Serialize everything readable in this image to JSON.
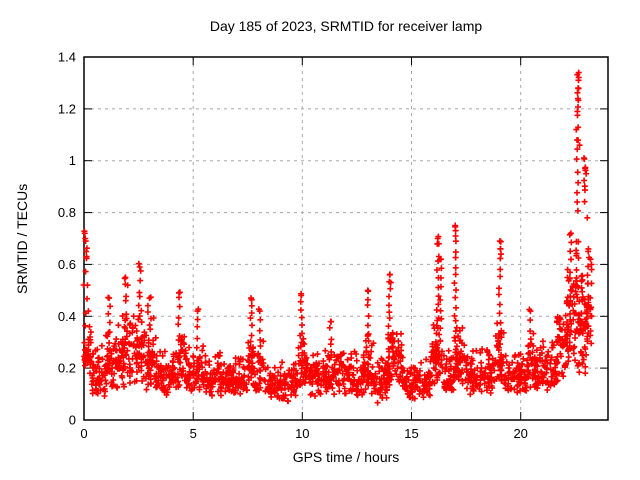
{
  "page": {
    "background": "#ffffff",
    "foreground": "#000000"
  },
  "chart_data": {
    "type": "scatter",
    "title": "Day 185 of 2023, SRMTID for receiver lamp",
    "xlabel": "GPS time / hours",
    "ylabel": "SRMTID / TECUs",
    "xlim": [
      0,
      24
    ],
    "ylim": [
      0,
      1.4
    ],
    "xticks": {
      "values": [
        0,
        5,
        10,
        15,
        20
      ],
      "labels": [
        "0",
        "5",
        "10",
        "15",
        "20"
      ]
    },
    "yticks": {
      "values": [
        0,
        0.2,
        0.4,
        0.6,
        0.8,
        1.0,
        1.2,
        1.4
      ],
      "labels": [
        "0",
        "0.2",
        "0.4",
        "0.6",
        "0.8",
        "1",
        "1.2",
        "1.4"
      ]
    },
    "grid": {
      "show": true,
      "style": "dashed",
      "color": "#a8a8a8"
    },
    "frame_color": "#000000",
    "marker": {
      "shape": "plus",
      "color": "#ff0000",
      "size": 7
    },
    "legend": null,
    "series": [
      {
        "name": "SRMTID",
        "peak_points": [
          [
            0.03,
            0.72
          ],
          [
            0.06,
            0.7
          ],
          [
            0.08,
            0.69
          ],
          [
            0.1,
            0.65
          ],
          [
            0.12,
            0.63
          ],
          [
            0.16,
            0.52
          ],
          [
            0.2,
            0.42
          ],
          [
            0.25,
            0.36
          ],
          [
            1.15,
            0.47
          ],
          [
            1.9,
            0.55
          ],
          [
            2.0,
            0.52
          ],
          [
            2.55,
            0.59
          ],
          [
            3.0,
            0.47
          ],
          [
            4.35,
            0.49
          ],
          [
            5.2,
            0.42
          ],
          [
            7.65,
            0.47
          ],
          [
            8.05,
            0.42
          ],
          [
            9.95,
            0.48
          ],
          [
            11.3,
            0.38
          ],
          [
            13.0,
            0.5
          ],
          [
            14.0,
            0.56
          ],
          [
            14.05,
            0.53
          ],
          [
            16.2,
            0.7
          ],
          [
            16.25,
            0.68
          ],
          [
            16.35,
            0.62
          ],
          [
            17.0,
            0.75
          ],
          [
            17.02,
            0.73
          ],
          [
            19.05,
            0.69
          ],
          [
            19.08,
            0.66
          ],
          [
            19.1,
            0.64
          ],
          [
            20.45,
            0.42
          ],
          [
            22.15,
            0.58
          ],
          [
            22.3,
            0.72
          ],
          [
            22.55,
            1.12
          ],
          [
            22.58,
            1.08
          ],
          [
            22.6,
            1.19
          ],
          [
            22.62,
            1.24
          ],
          [
            22.63,
            1.28
          ],
          [
            22.65,
            1.31
          ],
          [
            22.66,
            1.34
          ],
          [
            22.7,
            1.06
          ],
          [
            22.9,
            1.01
          ],
          [
            22.95,
            0.97
          ],
          [
            23.0,
            0.95
          ],
          [
            23.05,
            0.78
          ],
          [
            23.1,
            0.66
          ],
          [
            23.2,
            0.62
          ],
          [
            23.25,
            0.58
          ]
        ],
        "cloud_segments": [
          [
            0.0,
            0.35,
            0.17,
            0.36,
            40
          ],
          [
            0.35,
            1.0,
            0.09,
            0.3,
            55
          ],
          [
            1.0,
            1.5,
            0.11,
            0.38,
            45
          ],
          [
            1.5,
            2.3,
            0.12,
            0.42,
            70
          ],
          [
            2.3,
            2.75,
            0.14,
            0.48,
            45
          ],
          [
            2.75,
            3.3,
            0.11,
            0.42,
            50
          ],
          [
            3.3,
            4.3,
            0.09,
            0.28,
            75
          ],
          [
            4.3,
            4.6,
            0.12,
            0.38,
            30
          ],
          [
            4.6,
            5.5,
            0.1,
            0.3,
            70
          ],
          [
            5.5,
            7.5,
            0.09,
            0.27,
            150
          ],
          [
            7.5,
            8.3,
            0.1,
            0.34,
            65
          ],
          [
            8.3,
            9.8,
            0.07,
            0.24,
            110
          ],
          [
            9.8,
            10.25,
            0.12,
            0.36,
            40
          ],
          [
            10.25,
            12.8,
            0.09,
            0.28,
            190
          ],
          [
            12.8,
            13.3,
            0.1,
            0.35,
            45
          ],
          [
            13.3,
            13.9,
            0.06,
            0.28,
            50
          ],
          [
            13.9,
            14.6,
            0.13,
            0.42,
            65
          ],
          [
            14.6,
            15.9,
            0.08,
            0.24,
            100
          ],
          [
            15.9,
            16.5,
            0.13,
            0.4,
            55
          ],
          [
            16.5,
            16.95,
            0.1,
            0.3,
            40
          ],
          [
            16.95,
            17.5,
            0.12,
            0.4,
            50
          ],
          [
            17.5,
            18.8,
            0.09,
            0.3,
            100
          ],
          [
            18.8,
            19.25,
            0.14,
            0.4,
            40
          ],
          [
            19.25,
            20.3,
            0.09,
            0.28,
            80
          ],
          [
            20.3,
            20.65,
            0.12,
            0.38,
            30
          ],
          [
            20.65,
            21.6,
            0.11,
            0.32,
            75
          ],
          [
            21.6,
            22.1,
            0.14,
            0.45,
            50
          ],
          [
            22.1,
            22.5,
            0.18,
            0.6,
            45
          ],
          [
            22.5,
            22.85,
            0.3,
            0.8,
            40
          ],
          [
            22.6,
            23.0,
            0.17,
            0.45,
            25
          ],
          [
            22.85,
            23.25,
            0.25,
            0.65,
            35
          ]
        ],
        "spike_columns": [
          [
            0.06,
            0.36,
            0.72,
            8,
            0.08
          ],
          [
            1.15,
            0.3,
            0.47,
            6,
            0.05
          ],
          [
            1.9,
            0.35,
            0.55,
            7,
            0.06
          ],
          [
            2.55,
            0.4,
            0.6,
            7,
            0.05
          ],
          [
            3.0,
            0.35,
            0.47,
            6,
            0.08
          ],
          [
            4.35,
            0.3,
            0.5,
            7,
            0.05
          ],
          [
            5.2,
            0.28,
            0.42,
            5,
            0.05
          ],
          [
            7.65,
            0.3,
            0.47,
            7,
            0.05
          ],
          [
            8.05,
            0.28,
            0.42,
            5,
            0.05
          ],
          [
            9.95,
            0.3,
            0.48,
            7,
            0.05
          ],
          [
            11.3,
            0.26,
            0.38,
            5,
            0.06
          ],
          [
            13.0,
            0.3,
            0.5,
            7,
            0.04
          ],
          [
            14.0,
            0.3,
            0.56,
            10,
            0.06
          ],
          [
            16.2,
            0.3,
            0.7,
            14,
            0.06
          ],
          [
            16.35,
            0.35,
            0.62,
            8,
            0.05
          ],
          [
            17.0,
            0.28,
            0.75,
            16,
            0.04
          ],
          [
            19.05,
            0.3,
            0.69,
            12,
            0.05
          ],
          [
            20.45,
            0.25,
            0.42,
            5,
            0.05
          ],
          [
            22.3,
            0.4,
            0.72,
            10,
            0.06
          ],
          [
            22.6,
            0.8,
            1.12,
            9,
            0.05
          ],
          [
            22.62,
            1.18,
            1.34,
            7,
            0.04
          ],
          [
            22.95,
            0.85,
            1.01,
            7,
            0.05
          ],
          [
            23.1,
            0.45,
            0.66,
            7,
            0.05
          ]
        ]
      }
    ]
  }
}
